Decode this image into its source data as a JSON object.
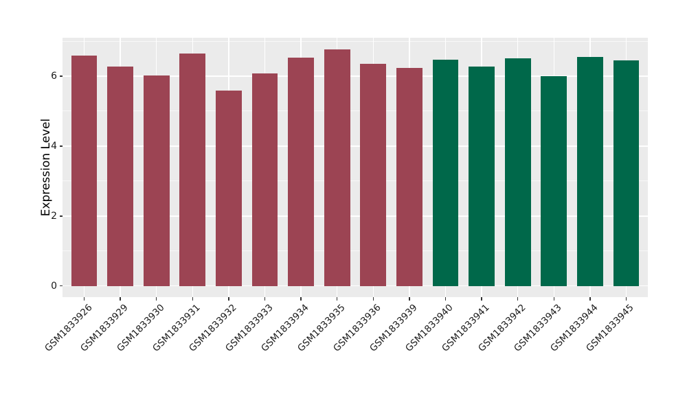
{
  "chart_data": {
    "type": "bar",
    "title": "",
    "xlabel": "",
    "ylabel": "Expression Level",
    "categories": [
      "GSM1833926",
      "GSM1833929",
      "GSM1833930",
      "GSM1833931",
      "GSM1833932",
      "GSM1833933",
      "GSM1833934",
      "GSM1833935",
      "GSM1833936",
      "GSM1833939",
      "GSM1833940",
      "GSM1833941",
      "GSM1833942",
      "GSM1833943",
      "GSM1833944",
      "GSM1833945"
    ],
    "values": [
      6.58,
      6.28,
      6.02,
      6.65,
      5.59,
      6.07,
      6.54,
      6.76,
      6.36,
      6.24,
      6.48,
      6.27,
      6.52,
      6.0,
      6.55,
      6.46
    ],
    "bar_groups": [
      "red",
      "red",
      "red",
      "red",
      "red",
      "red",
      "red",
      "red",
      "red",
      "red",
      "green",
      "green",
      "green",
      "green",
      "green",
      "green"
    ],
    "yticks": [
      "0",
      "2",
      "4",
      "6"
    ],
    "ytick_values": [
      0,
      2,
      4,
      6
    ],
    "yminor_values": [
      1,
      3,
      5,
      7
    ],
    "ylim": [
      -0.32,
      7.1
    ],
    "grid": true,
    "legend": "none",
    "colors": {
      "red_group": "#9C4453",
      "green_group": "#00684A",
      "panel_background": "#EBEBEB",
      "gridline": "#FFFFFF",
      "tick_mark": "#333333",
      "text": "#1A1A1A"
    }
  }
}
